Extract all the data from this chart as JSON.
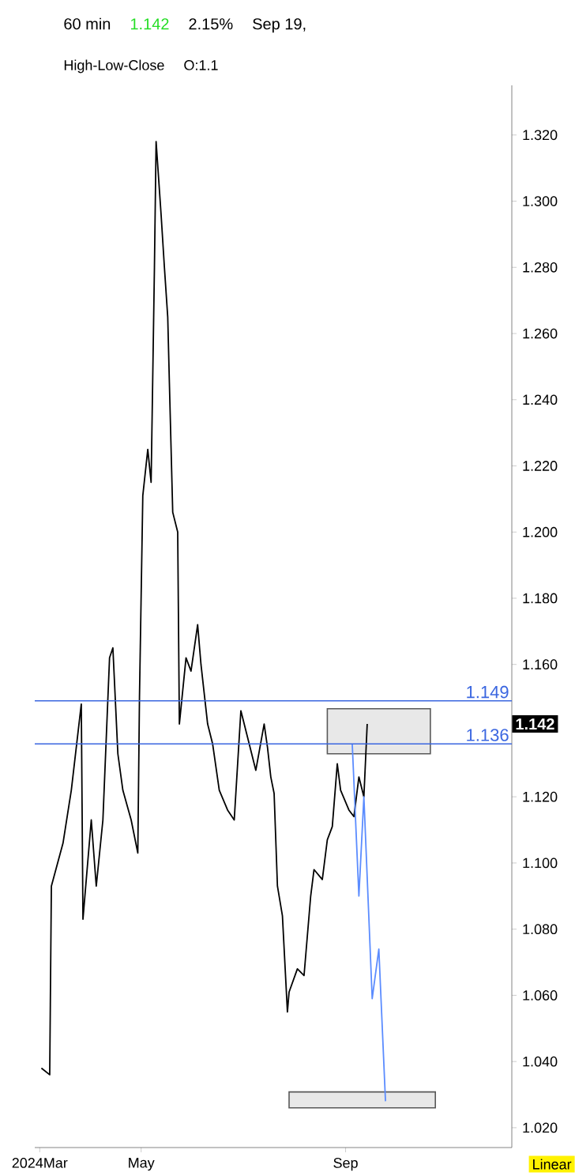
{
  "chart_data": {
    "type": "line",
    "annotations": [
      "60 min",
      "1.142",
      "2.15%",
      "Sep 19,",
      "High-Low-Close",
      "O:1.1",
      "Linear",
      {
        "text": "1.142",
        "y": 1.142
      }
    ],
    "series": [
      {
        "color": "#000000",
        "x": [
          "2024-03-02",
          "2024-03-07",
          "2024-03-08",
          "2024-03-15",
          "2024-03-20",
          "2024-03-26",
          "2024-03-27",
          "2024-04-01",
          "2024-04-04",
          "2024-04-08",
          "2024-04-12",
          "2024-04-14",
          "2024-04-17",
          "2024-04-20",
          "2024-04-25",
          "2024-04-29",
          "2024-04-30",
          "2024-05-02",
          "2024-05-05",
          "2024-05-07",
          "2024-05-09",
          "2024-05-10",
          "2024-05-13",
          "2024-05-15",
          "2024-05-17",
          "2024-05-18",
          "2024-05-20",
          "2024-05-23",
          "2024-05-24",
          "2024-05-28",
          "2024-05-31",
          "2024-06-04",
          "2024-06-06",
          "2024-06-10",
          "2024-06-13",
          "2024-06-17",
          "2024-06-22",
          "2024-06-26",
          "2024-06-30",
          "2024-07-04",
          "2024-07-09",
          "2024-07-14",
          "2024-07-16",
          "2024-07-18",
          "2024-07-20",
          "2024-07-22",
          "2024-07-25",
          "2024-07-28",
          "2024-07-29",
          "2024-08-03",
          "2024-08-07",
          "2024-08-11",
          "2024-08-13",
          "2024-08-18",
          "2024-08-21",
          "2024-08-24",
          "2024-08-27",
          "2024-08-29",
          "2024-09-03",
          "2024-09-06",
          "2024-09-09",
          "2024-09-12",
          "2024-09-14"
        ],
        "values": [
          1.038,
          1.036,
          1.093,
          1.106,
          1.122,
          1.148,
          1.083,
          1.113,
          1.093,
          1.113,
          1.162,
          1.165,
          1.133,
          1.122,
          1.113,
          1.103,
          1.15,
          1.211,
          1.225,
          1.215,
          1.28,
          1.318,
          1.296,
          1.28,
          1.265,
          1.245,
          1.206,
          1.2,
          1.142,
          1.162,
          1.158,
          1.172,
          1.16,
          1.142,
          1.136,
          1.122,
          1.116,
          1.113,
          1.146,
          1.138,
          1.128,
          1.142,
          1.135,
          1.126,
          1.121,
          1.093,
          1.084,
          1.055,
          1.061,
          1.068,
          1.066,
          1.09,
          1.098,
          1.095,
          1.107,
          1.111,
          1.13,
          1.122,
          1.116,
          1.114,
          1.126,
          1.12,
          1.142
        ]
      },
      {
        "color": "#5b8cff",
        "x": [
          "2024-09-05",
          "2024-09-09",
          "2024-09-12",
          "2024-09-17",
          "2024-09-21",
          "2024-09-25"
        ],
        "values": [
          1.136,
          1.09,
          1.12,
          1.059,
          1.074,
          1.028
        ]
      },
      {
        "color": "#e8e8e8",
        "x": [
          "2024-08-21",
          "2024-10-22"
        ],
        "values": [
          null,
          null
        ],
        "lower": [
          1.133,
          1.133
        ],
        "upper": [
          1.1466,
          1.1466
        ]
      },
      {
        "color": "#e8e8e8",
        "x": [
          "2024-07-29",
          "2024-10-25"
        ],
        "values": [
          null,
          null
        ],
        "lower": [
          1.026,
          1.026
        ],
        "upper": [
          1.0308,
          1.0308
        ]
      }
    ],
    "ref_lines": [
      {
        "axis": "y",
        "value": 1.149,
        "label": "1.149",
        "color": "#3a66e0"
      },
      {
        "axis": "y",
        "value": 1.136,
        "label": "1.136",
        "color": "#3a66e0"
      }
    ],
    "xlim": [
      "2024-02-27",
      "2024-12-10"
    ],
    "xticks": [
      {
        "value": "2024-03-01",
        "label": "2024Mar"
      },
      {
        "value": "2024-05-01",
        "label": "May"
      },
      {
        "value": "2024-09-01",
        "label": "Sep"
      }
    ],
    "ylim": [
      1.014,
      1.335
    ],
    "yticks": [
      {
        "value": 1.02,
        "label": "1.020"
      },
      {
        "value": 1.04,
        "label": "1.040"
      },
      {
        "value": 1.06,
        "label": "1.060"
      },
      {
        "value": 1.08,
        "label": "1.080"
      },
      {
        "value": 1.1,
        "label": "1.100"
      },
      {
        "value": 1.12,
        "label": "1.120"
      },
      {
        "value": 1.16,
        "label": "1.160"
      },
      {
        "value": 1.18,
        "label": "1.180"
      },
      {
        "value": 1.2,
        "label": "1.200"
      },
      {
        "value": 1.22,
        "label": "1.220"
      },
      {
        "value": 1.24,
        "label": "1.240"
      },
      {
        "value": 1.26,
        "label": "1.260"
      },
      {
        "value": 1.28,
        "label": "1.280"
      },
      {
        "value": 1.3,
        "label": "1.300"
      },
      {
        "value": 1.32,
        "label": "1.320"
      }
    ]
  }
}
